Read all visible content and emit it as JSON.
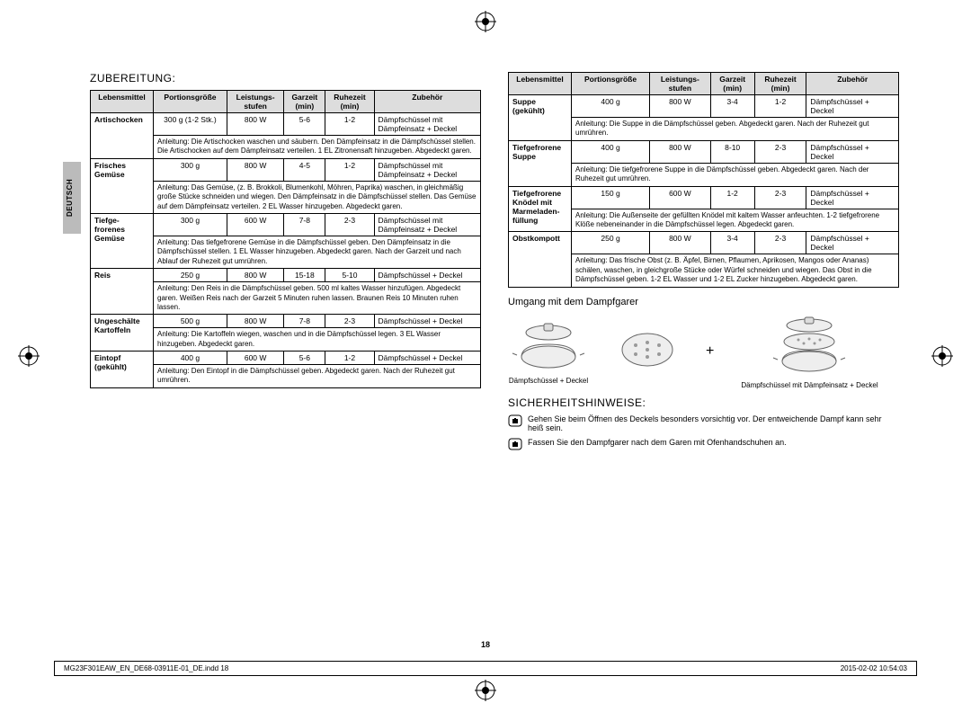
{
  "lang_tab": "DEUTSCH",
  "left": {
    "heading": "ZUBEREITUNG:",
    "headers": [
      "Lebensmittel",
      "Portionsgröße",
      "Leistungs-\nstufen",
      "Garzeit\n(min)",
      "Ruhezeit\n(min)",
      "Zubehör"
    ],
    "rows": [
      {
        "name": "Artischocken",
        "portion": "300 g (1-2 Stk.)",
        "power": "800 W",
        "cook": "5-6",
        "rest": "1-2",
        "acc": "Dämpfschüssel mit Dämpfeinsatz + Deckel",
        "instr": "Anleitung: Die Artischocken waschen und säubern. Den Dämpfeinsatz in die Dämpfschüssel stellen. Die Artischocken auf dem Dämpfeinsatz verteilen. 1 EL Zitronensaft hinzugeben. Abgedeckt garen."
      },
      {
        "name": "Frisches Gemüse",
        "portion": "300 g",
        "power": "800 W",
        "cook": "4-5",
        "rest": "1-2",
        "acc": "Dämpfschüssel mit Dämpfeinsatz + Deckel",
        "instr": "Anleitung: Das Gemüse, (z. B. Brokkoli, Blumenkohl, Möhren, Paprika) waschen, in gleichmäßig große Stücke schneiden und wiegen. Den Dämpfeinsatz in die Dämpfschüssel stellen. Das Gemüse auf dem Dämpfeinsatz verteilen. 2 EL Wasser hinzugeben. Abgedeckt garen."
      },
      {
        "name": "Tiefge-\nfrorenes Gemüse",
        "portion": "300 g",
        "power": "600 W",
        "cook": "7-8",
        "rest": "2-3",
        "acc": "Dämpfschüssel mit Dämpfeinsatz + Deckel",
        "instr": "Anleitung: Das tiefgefrorene Gemüse in die Dämpfschüssel geben. Den Dämpfeinsatz in die Dämpfschüssel stellen. 1 EL Wasser hinzugeben. Abgedeckt garen. Nach der Garzeit und nach Ablauf der Ruhezeit gut umrühren."
      },
      {
        "name": "Reis",
        "portion": "250 g",
        "power": "800 W",
        "cook": "15-18",
        "rest": "5-10",
        "acc": "Dämpfschüssel + Deckel",
        "instr": "Anleitung: Den Reis in die Dämpfschüssel geben. 500 ml kaltes Wasser hinzufügen. Abgedeckt garen. Weißen Reis nach der Garzeit 5 Minuten ruhen lassen. Braunen Reis 10 Minuten ruhen lassen."
      },
      {
        "name": "Ungeschälte Kartoffeln",
        "portion": "500 g",
        "power": "800 W",
        "cook": "7-8",
        "rest": "2-3",
        "acc": "Dämpfschüssel + Deckel",
        "instr": "Anleitung: Die Kartoffeln wiegen, waschen und in die Dämpfschüssel legen. 3 EL Wasser hinzugeben. Abgedeckt garen."
      },
      {
        "name": "Eintopf (gekühlt)",
        "portion": "400 g",
        "power": "600 W",
        "cook": "5-6",
        "rest": "1-2",
        "acc": "Dämpfschüssel + Deckel",
        "instr": "Anleitung: Den Eintopf in die Dämpfschüssel geben. Abgedeckt garen. Nach der Ruhezeit gut umrühren."
      }
    ]
  },
  "right": {
    "headers": [
      "Lebensmittel",
      "Portionsgröße",
      "Leistungs-\nstufen",
      "Garzeit\n(min)",
      "Ruhezeit\n(min)",
      "Zubehör"
    ],
    "rows": [
      {
        "name": "Suppe (gekühlt)",
        "portion": "400 g",
        "power": "800 W",
        "cook": "3-4",
        "rest": "1-2",
        "acc": "Dämpfschüssel + Deckel",
        "instr": "Anleitung: Die Suppe in die Dämpfschüssel geben. Abgedeckt garen. Nach der Ruhezeit gut umrühren."
      },
      {
        "name": "Tiefgefrorene Suppe",
        "portion": "400 g",
        "power": "800 W",
        "cook": "8-10",
        "rest": "2-3",
        "acc": "Dämpfschüssel + Deckel",
        "instr": "Anleitung: Die tiefgefrorene Suppe in die Dämpfschüssel geben. Abgedeckt garen. Nach der Ruhezeit gut umrühren."
      },
      {
        "name": "Tiefgefrorene Knödel mit Marmeladen-\nfüllung",
        "portion": "150 g",
        "power": "600 W",
        "cook": "1-2",
        "rest": "2-3",
        "acc": "Dämpfschüssel + Deckel",
        "instr": "Anleitung: Die Außenseite der gefüllten Knödel mit kaltem Wasser anfeuchten. 1-2 tiefgefrorene Klöße nebeneinander in die Dämpfschüssel legen. Abgedeckt garen."
      },
      {
        "name": "Obstkompott",
        "portion": "250 g",
        "power": "800 W",
        "cook": "3-4",
        "rest": "2-3",
        "acc": "Dämpfschüssel + Deckel",
        "instr": "Anleitung: Das frische Obst (z. B. Äpfel, Birnen, Pflaumen, Aprikosen, Mangos oder Ananas) schälen, waschen, in gleichgroße Stücke oder Würfel schneiden und wiegen. Das Obst in die Dämpfschüssel geben. 1-2 EL Wasser und 1-2 EL Zucker hinzugeben. Abgedeckt garen."
      }
    ],
    "steamer_heading": "Umgang mit dem Dampfgarer",
    "steamer_caption1": "Dämpfschüssel + Deckel",
    "steamer_caption2": "Dämpfschüssel mit Dämpfeinsatz + Deckel",
    "safety_heading": "SICHERHEITSHINWEISE:",
    "safety1": "Gehen Sie beim Öffnen des Deckels besonders vorsichtig vor. Der entweichende Dampf kann sehr heiß sein.",
    "safety2": "Fassen Sie den Dampfgarer nach dem Garen mit Ofenhandschuhen an."
  },
  "page_number": "18",
  "footer_left": "MG23F301EAW_EN_DE68-03911E-01_DE.indd   18",
  "footer_right": "2015-02-02   10:54:03"
}
